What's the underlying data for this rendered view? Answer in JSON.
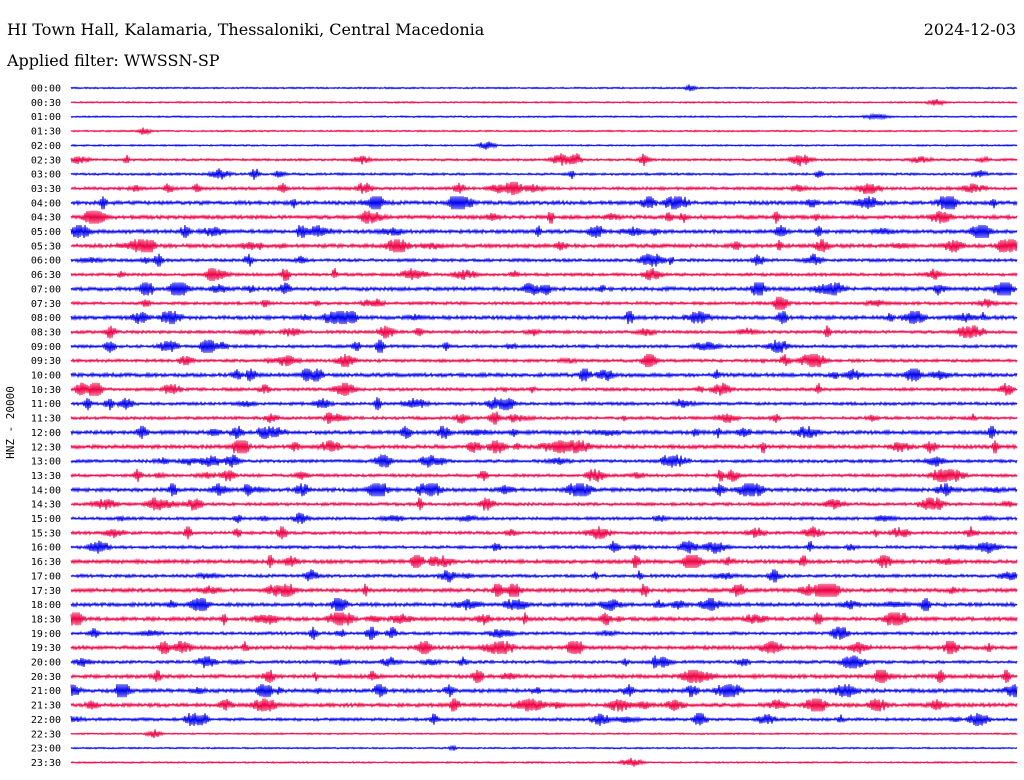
{
  "header": {
    "station": "HI Town Hall, Kalamaria, Thessaloniki, Central Macedonia",
    "date": "2024-12-03",
    "filter": "Applied filter: WWSSN-SP"
  },
  "axis_label": "HNZ - 20000",
  "colors": {
    "odd_trace": "#0000ee",
    "even_trace": "#ee0044",
    "text": "#000000"
  },
  "chart_data": {
    "type": "line",
    "title": "HI Town Hall, Kalamaria, Thessaloniki, Central Macedonia",
    "subtitle": "Applied filter: WWSSN-SP",
    "ylabel": "HNZ - 20000",
    "xlabel": "",
    "grid": false,
    "legend": "none",
    "rows": [
      "00:00",
      "00:30",
      "01:00",
      "01:30",
      "02:00",
      "02:30",
      "03:00",
      "03:30",
      "04:00",
      "04:30",
      "05:00",
      "05:30",
      "06:00",
      "06:30",
      "07:00",
      "07:30",
      "08:00",
      "08:30",
      "09:00",
      "09:30",
      "10:00",
      "10:30",
      "11:00",
      "11:30",
      "12:00",
      "12:30",
      "13:00",
      "13:30",
      "14:00",
      "14:30",
      "15:00",
      "15:30",
      "16:00",
      "16:30",
      "17:00",
      "17:30",
      "18:00",
      "18:30",
      "19:00",
      "19:30",
      "20:00",
      "20:30",
      "21:00",
      "21:30",
      "22:00",
      "22:30",
      "23:00",
      "23:30"
    ],
    "activity": [
      1,
      1,
      1,
      1,
      1,
      2,
      2,
      3,
      4,
      4,
      4,
      4,
      3,
      3,
      4,
      3,
      4,
      3,
      3,
      3,
      4,
      3,
      3,
      3,
      4,
      4,
      3,
      3,
      4,
      3,
      3,
      3,
      3,
      4,
      3,
      4,
      4,
      4,
      3,
      4,
      3,
      4,
      4,
      4,
      3,
      1,
      1,
      1
    ]
  }
}
